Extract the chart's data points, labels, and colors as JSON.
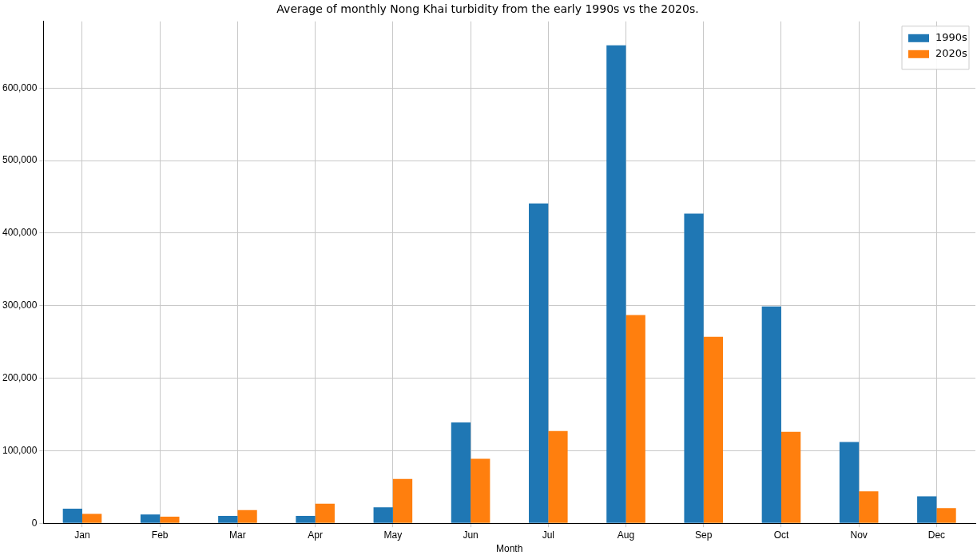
{
  "chart_data": {
    "type": "bar",
    "title": "Average of monthly Nong Khai turbidity from the early 1990s vs the 2020s.",
    "xlabel": "Month",
    "categories": [
      "Jan",
      "Feb",
      "Mar",
      "Apr",
      "May",
      "Jun",
      "Jul",
      "Aug",
      "Sep",
      "Oct",
      "Nov",
      "Dec"
    ],
    "series": [
      {
        "name": "1990s",
        "color": "#1f77b4",
        "values": [
          20000,
          12000,
          10000,
          10000,
          22000,
          139000,
          441000,
          659000,
          427000,
          299000,
          112000,
          37000
        ]
      },
      {
        "name": "2020s",
        "color": "#ff7f0e",
        "values": [
          13000,
          9000,
          18000,
          27000,
          61000,
          89000,
          127000,
          287000,
          257000,
          126000,
          44000,
          21000
        ]
      }
    ],
    "ylim": [
      0,
      692000
    ],
    "yticks": [
      {
        "value": 0,
        "label": "0"
      },
      {
        "value": 100000,
        "label": "100,000"
      },
      {
        "value": 200000,
        "label": "200,000"
      },
      {
        "value": 300000,
        "label": "300,000"
      },
      {
        "value": 400000,
        "label": "400,000"
      },
      {
        "value": 500000,
        "label": "500,000"
      },
      {
        "value": 600000,
        "label": "600,000"
      }
    ],
    "grid": true,
    "legend": "top right"
  }
}
